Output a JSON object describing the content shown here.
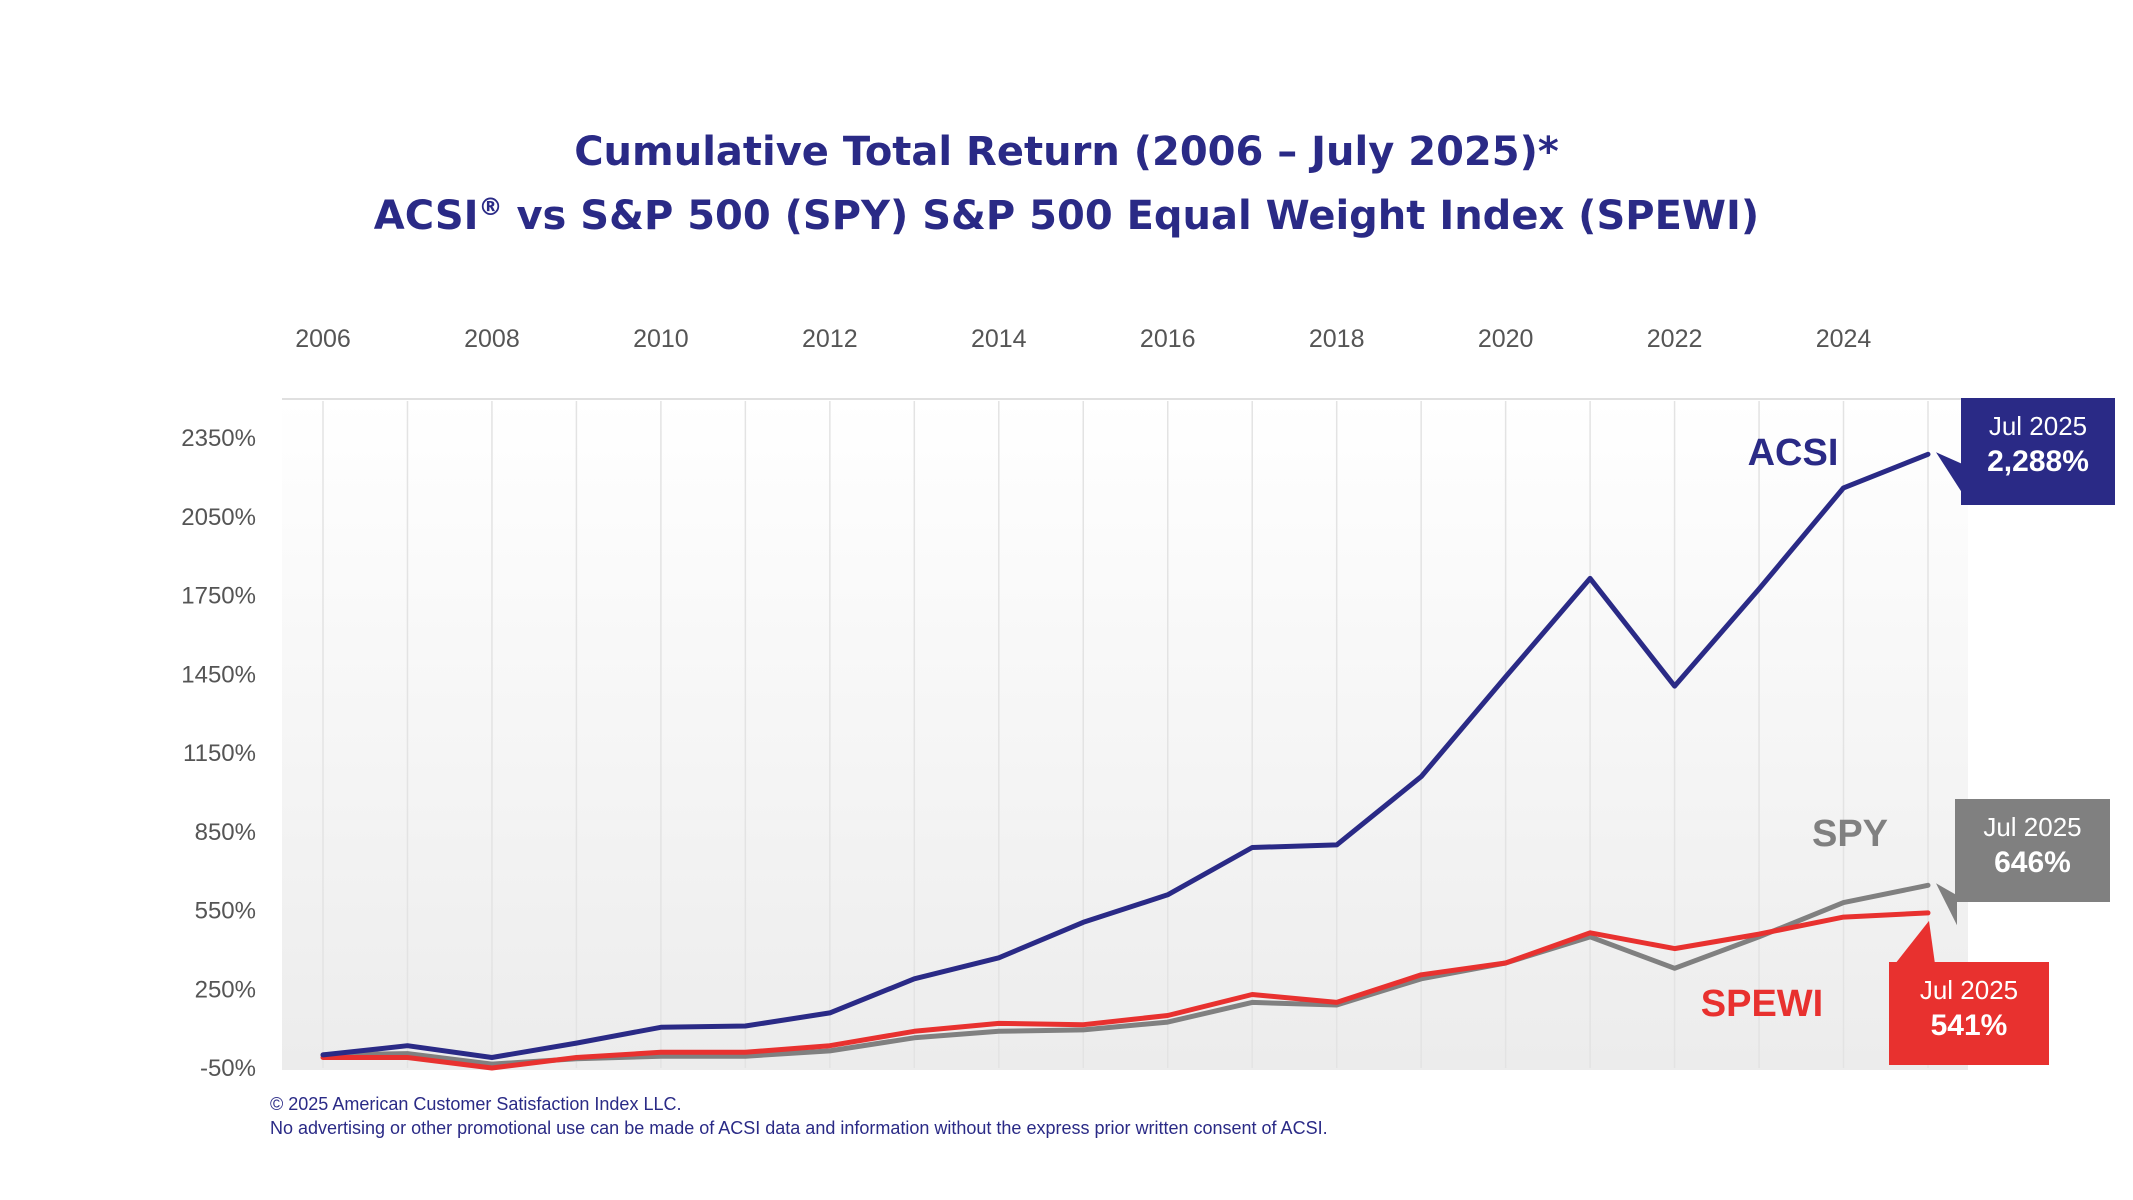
{
  "title": {
    "line1": "Cumulative Total Return (2006 – July 2025)*",
    "line2_pre": "ACSI",
    "line2_sup": "®",
    "line2_post": " vs S&P 500 (SPY) S&P 500 Equal Weight Index (SPEWI)"
  },
  "footer": {
    "copyright": "© 2025 American Customer Satisfaction Index LLC.",
    "notice": "No advertising or other promotional use can be made of ACSI data and information without the express prior written consent of ACSI."
  },
  "colors": {
    "acsi": "#2a2a86",
    "spy": "#808080",
    "spewi": "#e8312f",
    "axis_text": "#555555",
    "grid": "#e3e3e3"
  },
  "chart_data": {
    "type": "line",
    "x_tick_labels": [
      "2006",
      "2008",
      "2010",
      "2012",
      "2014",
      "2016",
      "2018",
      "2020",
      "2022",
      "2024"
    ],
    "y_tick_labels": [
      "2350%",
      "2050%",
      "1750%",
      "1450%",
      "1150%",
      "850%",
      "550%",
      "250%",
      "-50%"
    ],
    "ylim": [
      -50,
      2350
    ],
    "xlim": [
      2006,
      2025
    ],
    "grid": "vertical",
    "x": [
      2006,
      2007,
      2008,
      2009,
      2010,
      2011,
      2012,
      2013,
      2014,
      2015,
      2016,
      2017,
      2018,
      2019,
      2020,
      2021,
      2022,
      2023,
      2024,
      2025
    ],
    "series": [
      {
        "name": "ACSI",
        "key": "acsi",
        "values": [
          0,
          35,
          -10,
          45,
          105,
          110,
          160,
          290,
          370,
          505,
          610,
          790,
          800,
          1060,
          1440,
          1815,
          1405,
          1775,
          2160,
          2288
        ],
        "end_label": {
          "period": "Jul 2025",
          "value": "2,288%"
        }
      },
      {
        "name": "SPY",
        "key": "spy",
        "values": [
          0,
          5,
          -35,
          -15,
          -5,
          -5,
          15,
          65,
          90,
          95,
          125,
          200,
          190,
          290,
          350,
          450,
          330,
          450,
          580,
          646
        ],
        "end_label": {
          "period": "Jul 2025",
          "value": "646%"
        }
      },
      {
        "name": "SPEWI",
        "key": "spewi",
        "values": [
          -10,
          -10,
          -50,
          -10,
          10,
          10,
          35,
          90,
          120,
          115,
          150,
          230,
          200,
          305,
          350,
          465,
          405,
          460,
          525,
          541
        ],
        "end_label": {
          "period": "Jul 2025",
          "value": "541%"
        }
      }
    ]
  }
}
